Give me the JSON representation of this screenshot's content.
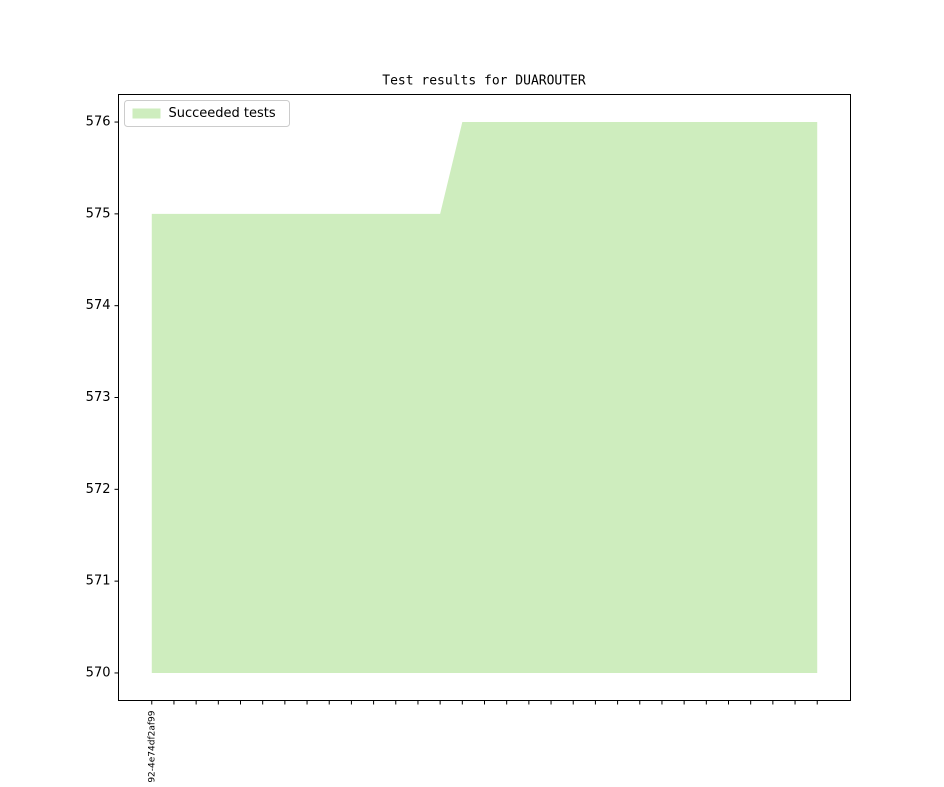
{
  "chart_data": {
    "type": "area",
    "title": "Test results for DUAROUTER",
    "categories": [
      "92-4e74df2af99",
      null,
      null,
      null,
      null,
      null,
      null,
      null,
      null,
      null,
      null,
      null,
      null,
      null,
      null,
      null,
      null,
      null,
      null,
      null,
      null,
      null,
      null,
      null,
      null,
      null,
      null,
      null,
      null,
      null,
      null
    ],
    "series": [
      {
        "name": "Succeeded tests",
        "color": "#ceedbe",
        "values": [
          575,
          575,
          575,
          575,
          575,
          575,
          575,
          575,
          575,
          575,
          575,
          575,
          575,
          575,
          576,
          576,
          576,
          576,
          576,
          576,
          576,
          576,
          576,
          576,
          576,
          576,
          576,
          576,
          576,
          576,
          576
        ]
      }
    ],
    "fill_base": 570,
    "xlim": [
      -1.5,
      31.5
    ],
    "ylim": [
      569.7,
      576.3
    ],
    "yticks": [
      570,
      571,
      572,
      573,
      574,
      575,
      576
    ],
    "grid": false,
    "legend": "upper left"
  }
}
